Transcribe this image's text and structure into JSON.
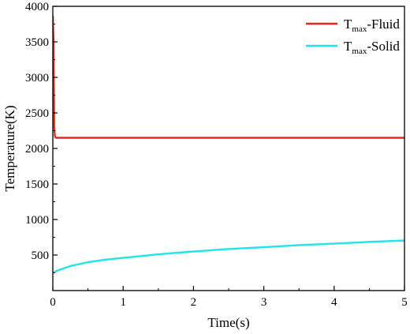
{
  "chart_data": {
    "type": "line",
    "xlabel": "Time(s)",
    "ylabel": "Temperature(K)",
    "xlim": [
      0,
      5
    ],
    "ylim": [
      0,
      4000
    ],
    "x_ticks": [
      0,
      1,
      2,
      3,
      4,
      5
    ],
    "y_ticks": [
      500,
      1000,
      1500,
      2000,
      2500,
      3000,
      3500,
      4000
    ],
    "grid": false,
    "legend": "top-right",
    "series": [
      {
        "name_main": "T",
        "name_sub": "max",
        "name_suffix": "-Fluid",
        "color": "#e8291c",
        "x": [
          0,
          0.01,
          0.02,
          0.03,
          0.04,
          0.05,
          0.1,
          0.5,
          1,
          2,
          3,
          4,
          5
        ],
        "y": [
          3870,
          3500,
          2300,
          2170,
          2155,
          2150,
          2150,
          2150,
          2150,
          2150,
          2150,
          2150,
          2150
        ]
      },
      {
        "name_main": "T",
        "name_sub": "max",
        "name_suffix": "-Solid",
        "color": "#1ee6ec",
        "x": [
          0,
          0.05,
          0.1,
          0.25,
          0.5,
          0.75,
          1,
          1.5,
          2,
          2.5,
          3,
          3.5,
          4,
          4.5,
          5
        ],
        "y": [
          250,
          275,
          295,
          345,
          400,
          435,
          460,
          510,
          550,
          585,
          610,
          640,
          660,
          685,
          705
        ]
      }
    ]
  }
}
